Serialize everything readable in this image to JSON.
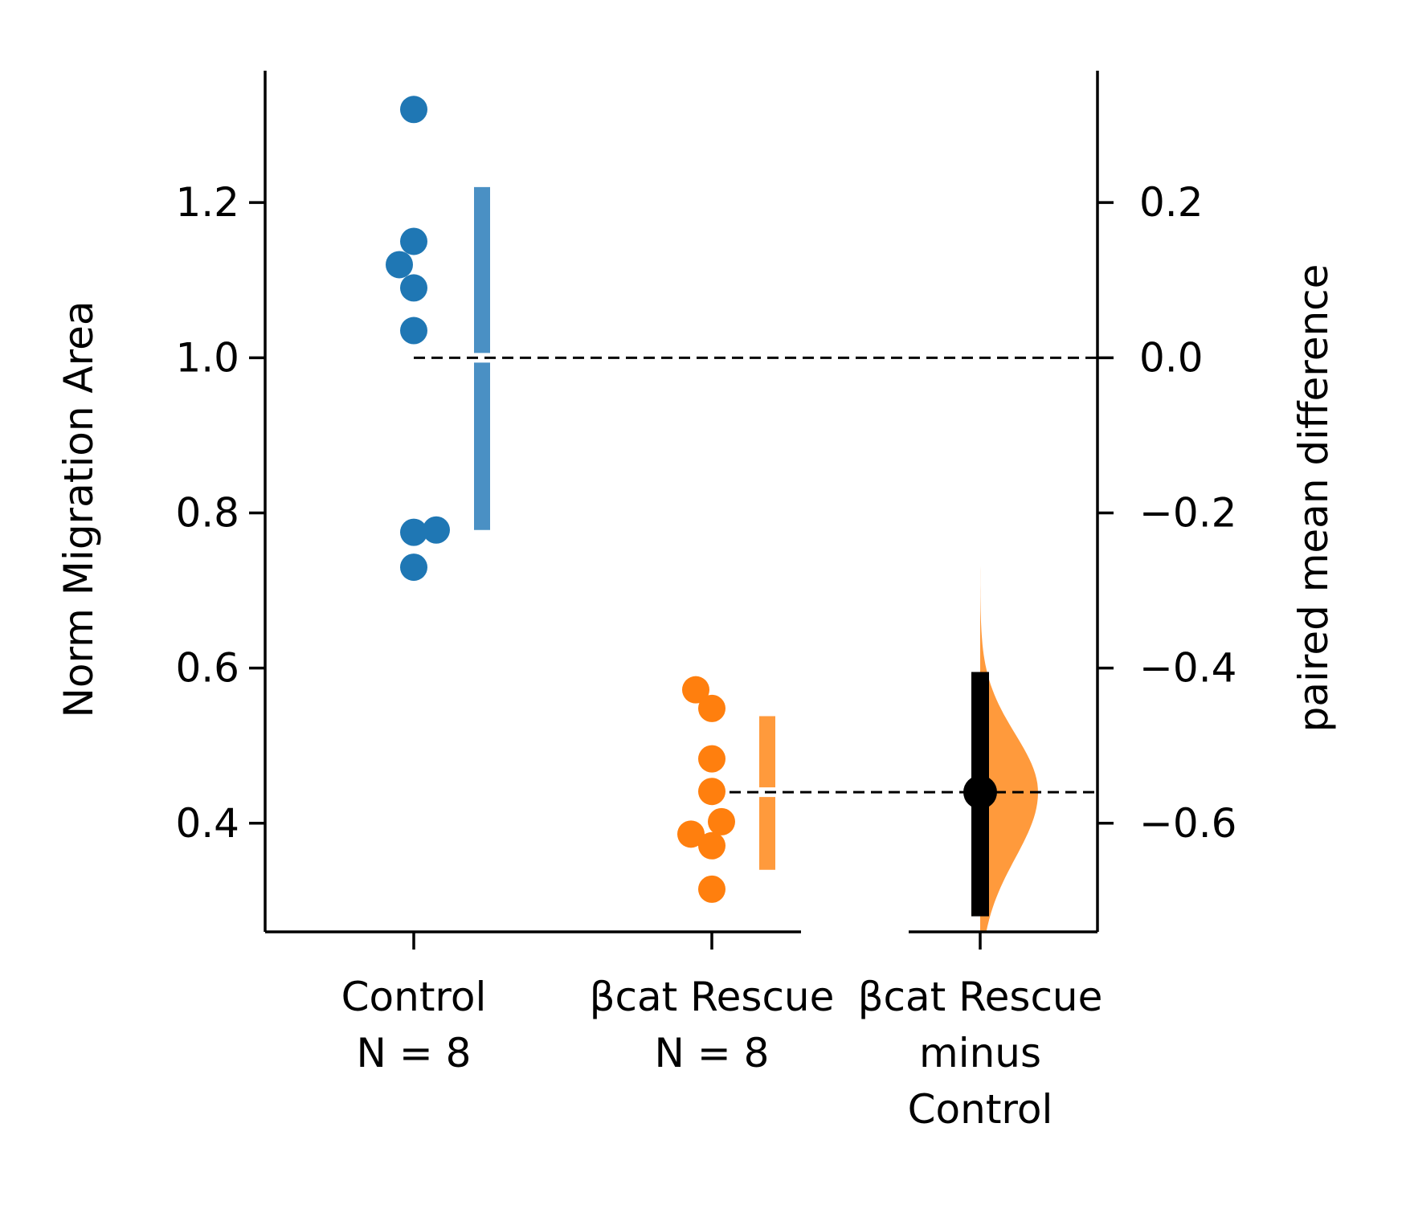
{
  "chart_data": {
    "type": "scatter",
    "left_axis": {
      "label": "Norm Migration Area",
      "ticks": [
        0.4,
        0.6,
        0.8,
        1.0,
        1.2
      ],
      "tick_labels": [
        "0.4",
        "0.6",
        "0.8",
        "1.0",
        "1.2"
      ],
      "ylim": [
        0.26,
        1.37
      ]
    },
    "right_axis": {
      "label": "paired mean difference",
      "ticks": [
        0.2,
        0.0,
        -0.2,
        -0.4,
        -0.6
      ],
      "tick_labels": [
        "0.2",
        "0.0",
        "−0.2",
        "−0.4",
        "−0.6"
      ],
      "ylim": [
        -0.74,
        0.37
      ]
    },
    "groups": [
      {
        "label_lines": [
          "Control",
          "N = 8"
        ],
        "color": "#1f77b4",
        "bar_color": "#4a90c4",
        "points": [
          1.32,
          1.15,
          1.12,
          1.09,
          1.035,
          0.775,
          0.778,
          0.73
        ],
        "mean": 1.0,
        "sd_low": 0.778,
        "sd_high": 1.22
      },
      {
        "label_lines": [
          "βcat Rescue",
          "N = 8"
        ],
        "color": "#ff7f0e",
        "bar_color": "#ff9a3c",
        "points": [
          0.572,
          0.548,
          0.483,
          0.441,
          0.402,
          0.386,
          0.371,
          0.315
        ],
        "mean": 0.44,
        "sd_low": 0.34,
        "sd_high": 0.538
      }
    ],
    "difference": {
      "label_lines": [
        "βcat Rescue",
        "minus",
        "Control"
      ],
      "mean_diff": -0.56,
      "ci": [
        -0.72,
        -0.405
      ],
      "dot_color": "#000000",
      "density_color": "#ff9a3c"
    }
  }
}
